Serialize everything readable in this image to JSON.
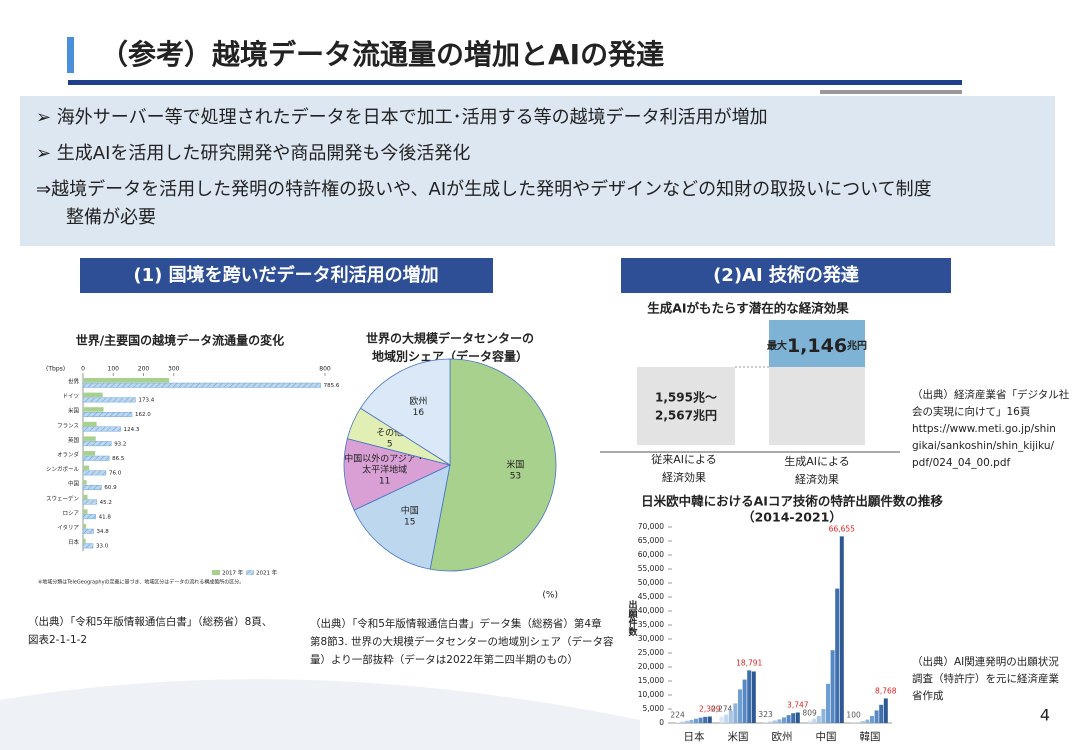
{
  "title": "（参考）越境データ流通量の増加とAIの発達",
  "bullets": [
    [
      "➢ 海外サーバー等で処理されたデータを日本で加工･活用する等の越境データ利活用が増加"
    ],
    [
      "➢ 生成AIを活用した研究開発や商品開発も今後活発化"
    ],
    [
      "⇒越境データを活用した発明の特許権の扱いや、AIが生成した発明やデザインなどの知財の取扱いについて制度",
      "整備が必要"
    ]
  ],
  "sections": [
    "(1) 国境を跨いだデータ利活用の増加",
    "(2)AI 技術の発達"
  ],
  "sources": {
    "left": [
      "（出典）「令和5年版情報通信白書」（総務省）8頁、",
      "図表2-1-1-2"
    ],
    "middle": [
      "（出典）「令和5年版情報通信白書」データ集（総務省）第4章",
      "第8節3. 世界の大規模データセンターの地域別シェア（データ容",
      "量）より一部抜粋（データは2022年第二四半期のもの）"
    ],
    "right_top": [
      "（出典）経済産業省「デジタル社",
      "会の実現に向けて」16頁",
      "https://www.meti.go.jp/shin",
      "gikai/sankoshin/shin_kijiku/",
      "pdf/024_04_00.pdf"
    ],
    "right_bottom": [
      "（出典）AI関連発明の出願状況",
      "調査（特許庁）を元に経済産業",
      "省作成"
    ]
  },
  "economic_effect": {
    "title": "生成AIがもたらす潜在的な経済効果",
    "conventional": {
      "label": [
        "1,595兆～",
        "2,567兆円"
      ],
      "caption": [
        "従来AIによる",
        "経済効果"
      ]
    },
    "generative": {
      "label": [
        "最大",
        "1,146",
        "兆円"
      ],
      "caption": [
        "生成AIによる",
        "経済効果"
      ]
    }
  },
  "page_number": "4",
  "chart_data": [
    {
      "type": "hbar",
      "title": "世界/主要国の越境データ流通量の変化",
      "unit": "(Tbps)",
      "note": "※地域分類はTeleGeographyの定義に基づき、地域区分はデータの流れる構成箇所の区分。",
      "categories": [
        "世界",
        "ドイツ",
        "米国",
        "フランス",
        "英国",
        "オランダ",
        "シンガポール",
        "中国",
        "スウェーデン",
        "ロシア",
        "イタリア",
        "日本"
      ],
      "series": [
        {
          "name": "2017 年",
          "color": "#a9d18e",
          "values": [
            285,
            65,
            68,
            45,
            42,
            40,
            20,
            12,
            15,
            15,
            10,
            9
          ]
        },
        {
          "name": "2021 年",
          "color": "#bdd7ee",
          "values": [
            785.6,
            173.4,
            162,
            124.3,
            93.2,
            86.5,
            76,
            60.9,
            45.2,
            41.8,
            34.8,
            33
          ],
          "value_labels": [
            "785.6",
            "173.4",
            "162.0",
            "124.3",
            "93.2",
            "86.5",
            "76.0",
            "60.9",
            "45.2",
            "41.8",
            "34.8",
            "33.0"
          ]
        }
      ],
      "xlim": [
        0,
        800
      ],
      "xticks": [
        0,
        100,
        200,
        300,
        800
      ]
    },
    {
      "type": "pie",
      "title": [
        "世界の大規模データセンターの",
        "地域別シェア（データ容量）"
      ],
      "unit": "(%)",
      "categories": [
        [
          "米国"
        ],
        [
          "中国"
        ],
        [
          "中国以外のアジア・",
          "太平洋地域"
        ],
        [
          "その他"
        ],
        [
          "欧州"
        ]
      ],
      "values": [
        53,
        15,
        11,
        5,
        16
      ],
      "colors": [
        "#a9d18e",
        "#bdd7ee",
        "#d9a0d6",
        "#e2efb4",
        "#dae8f7"
      ]
    },
    {
      "type": "bar",
      "title": [
        "日米欧中韓におけるAIコア技術の特許出願件数の推移",
        "（2014-2021）"
      ],
      "y_label": "出願件数",
      "categories": [
        "日本",
        "米国",
        "欧州",
        "中国",
        "韓国"
      ],
      "series": [
        {
          "color": "#dbe7f5",
          "label_color": "#555555",
          "values": [
            224,
            2274,
            323,
            809,
            100
          ],
          "value_labels": [
            "224",
            "2,274",
            "323",
            "809",
            "100"
          ]
        },
        {
          "color": "#c3d7ee",
          "values": [
            500,
            3000,
            600,
            1500,
            300
          ]
        },
        {
          "color": "#a8c5e6",
          "values": [
            800,
            4500,
            900,
            2500,
            700
          ]
        },
        {
          "color": "#8cb2dd",
          "values": [
            1100,
            7000,
            1300,
            5000,
            1200
          ]
        },
        {
          "color": "#6f9ed3",
          "values": [
            1500,
            12000,
            2000,
            14000,
            2500
          ]
        },
        {
          "color": "#5688c4",
          "values": [
            1900,
            15500,
            2800,
            26000,
            4500
          ]
        },
        {
          "color": "#3f70ad",
          "label_color": "#e02020",
          "values": [
            2200,
            18791,
            3500,
            48000,
            6500
          ],
          "value_labels": [
            null,
            "18,791",
            null,
            null,
            null
          ]
        },
        {
          "color": "#2d5891",
          "label_color": "#e02020",
          "values": [
            2309,
            18400,
            3747,
            66655,
            8768
          ],
          "value_labels": [
            "2,309",
            null,
            "3,747",
            "66,655",
            "8,768"
          ]
        }
      ],
      "ylim": [
        0,
        70000
      ],
      "yticks": [
        0,
        {
          "value": 5000,
          "label": "5,000"
        },
        {
          "value": 10000,
          "label": "10,000"
        },
        {
          "value": 15000,
          "label": "15,000"
        },
        {
          "value": 20000,
          "label": "20,000"
        },
        {
          "value": 25000,
          "label": "25,000"
        },
        {
          "value": 30000,
          "label": "30,000"
        },
        {
          "value": 35000,
          "label": "35,000"
        },
        {
          "value": 40000,
          "label": "40,000"
        },
        {
          "value": 45000,
          "label": "45,000"
        },
        {
          "value": 50000,
          "label": "50,000"
        },
        {
          "value": 55000,
          "label": "55,000"
        },
        {
          "value": 60000,
          "label": "60,000"
        },
        {
          "value": 65000,
          "label": "65,000"
        },
        {
          "value": 70000,
          "label": "70,000"
        }
      ]
    }
  ]
}
